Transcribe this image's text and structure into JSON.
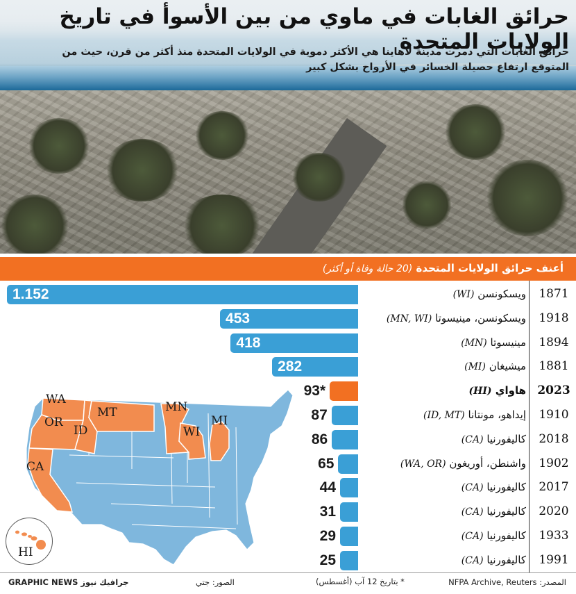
{
  "header": {
    "title": "حرائق الغابات في ماوي من بين الأسوأ في تاريخ الولايات المتحدة",
    "subtitle": "حرائق الغابات التي دمرت مدينة لاهاينا هي الأكثر دموية في الولايات المتحدة منذ أكثر من قرن، حيث من المتوقع ارتفاع حصيلة الخسائر في الأرواح بشكل كبير"
  },
  "banner": {
    "title": "أعنف حرائق الولايات المتحدة",
    "note": "(20 حالة وفاة أو أكثر)"
  },
  "chart_data": {
    "type": "bar",
    "orientation": "horizontal",
    "title": "أعنف حرائق الولايات المتحدة",
    "subtitle": "(20 حالة وفاة أو أكثر)",
    "xlim": [
      0,
      1152
    ],
    "rows": [
      {
        "year": "1871",
        "place": "ويسكونسن",
        "abbr": "(WI)",
        "deaths": 1152,
        "label": "1.152",
        "highlight": false
      },
      {
        "year": "1918",
        "place": "ويسكونسن، مينيسوتا",
        "abbr": "(MN, WI)",
        "deaths": 453,
        "label": "453",
        "highlight": false
      },
      {
        "year": "1894",
        "place": "مينيسوتا",
        "abbr": "(MN)",
        "deaths": 418,
        "label": "418",
        "highlight": false
      },
      {
        "year": "1881",
        "place": "ميشيغان",
        "abbr": "(MI)",
        "deaths": 282,
        "label": "282",
        "highlight": false
      },
      {
        "year": "2023",
        "place": "هاواي",
        "abbr": "(HI)",
        "deaths": 93,
        "label": "93*",
        "highlight": true
      },
      {
        "year": "1910",
        "place": "إيداهو، مونتانا",
        "abbr": "(ID, MT)",
        "deaths": 87,
        "label": "87",
        "highlight": false
      },
      {
        "year": "2018",
        "place": "كاليفورنيا",
        "abbr": "(CA)",
        "deaths": 86,
        "label": "86",
        "highlight": false
      },
      {
        "year": "1902",
        "place": "واشنطن، أوريغون",
        "abbr": "(WA, OR)",
        "deaths": 65,
        "label": "65",
        "highlight": false
      },
      {
        "year": "2017",
        "place": "كاليفورنيا",
        "abbr": "(CA)",
        "deaths": 44,
        "label": "44",
        "highlight": false
      },
      {
        "year": "2020",
        "place": "كاليفورنيا",
        "abbr": "(CA)",
        "deaths": 31,
        "label": "31",
        "highlight": false
      },
      {
        "year": "1933",
        "place": "كاليفورنيا",
        "abbr": "(CA)",
        "deaths": 29,
        "label": "29",
        "highlight": false
      },
      {
        "year": "1991",
        "place": "كاليفورنيا",
        "abbr": "(CA)",
        "deaths": 25,
        "label": "25",
        "highlight": false
      }
    ]
  },
  "colors": {
    "bar": "#3a9fd6",
    "highlight_bar": "#f27022",
    "banner": "#f27022",
    "map_state": "#7fb7dd",
    "map_highlight": "#f28c4f"
  },
  "map": {
    "highlighted_states": [
      "WA",
      "OR",
      "ID",
      "MT",
      "CA",
      "MN",
      "WI",
      "MI",
      "HI"
    ],
    "labels": {
      "wa": "WA",
      "or": "OR",
      "id": "ID",
      "mt": "MT",
      "ca": "CA",
      "mn": "MN",
      "wi": "WI",
      "mi": "MI",
      "hi": "HI"
    }
  },
  "footer": {
    "source": "المصدر: NFPA Archive, Reuters",
    "footnote": "* بتاريخ 12 آب (أغسطس)",
    "photo_credit": "الصور: جتي",
    "brand": "GRAPHIC NEWS جرافيك نيوز"
  }
}
